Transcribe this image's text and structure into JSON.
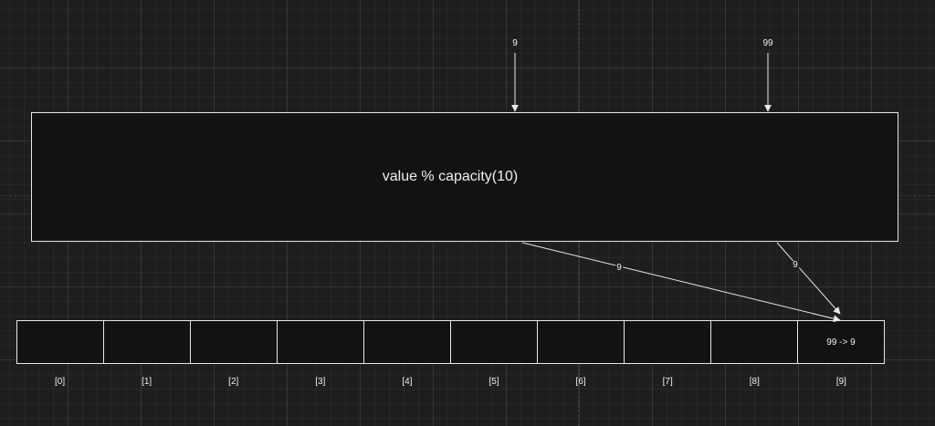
{
  "inputs": {
    "first": "9",
    "second": "99"
  },
  "hash_function": {
    "label": "value % capacity(10)"
  },
  "edges": {
    "first_result": "9",
    "second_result": "9"
  },
  "array": {
    "cells": [
      "",
      "",
      "",
      "",
      "",
      "",
      "",
      "",
      "",
      "99 -> 9"
    ],
    "indices": [
      "[0]",
      "[1]",
      "[2]",
      "[3]",
      "[4]",
      "[5]",
      "[6]",
      "[7]",
      "[8]",
      "[9]"
    ]
  },
  "colors": {
    "background": "#1e1e1e",
    "stroke": "#e8e8e8",
    "text": "#f0f0f0"
  }
}
